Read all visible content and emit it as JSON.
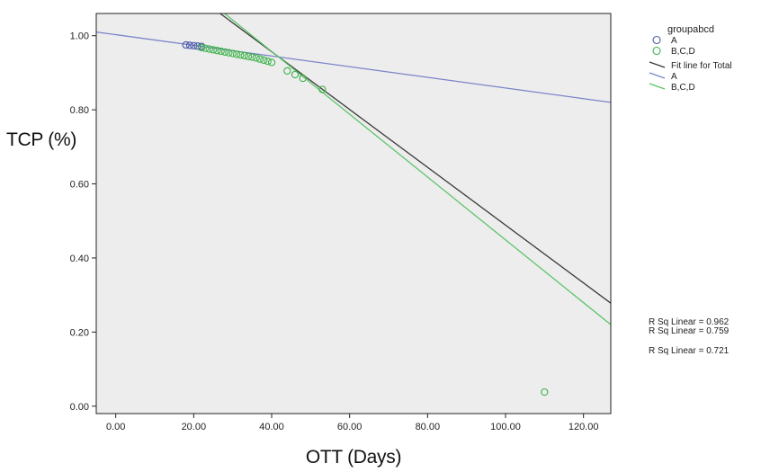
{
  "chart_data": {
    "type": "scatter",
    "xlabel": "OTT (Days)",
    "ylabel": "TCP (%)",
    "xlim": [
      -5,
      127
    ],
    "ylim": [
      -0.02,
      1.06
    ],
    "x_ticks": [
      0,
      20,
      40,
      60,
      80,
      100,
      120
    ],
    "x_tick_labels": [
      "0.00",
      "20.00",
      "40.00",
      "60.00",
      "80.00",
      "100.00",
      "120.00"
    ],
    "y_ticks": [
      0,
      0.2,
      0.4,
      0.6,
      0.8,
      1.0
    ],
    "y_tick_labels": [
      "0.00",
      "0.20",
      "0.40",
      "0.60",
      "0.80",
      "1.00"
    ],
    "grid": false,
    "background": "#ededed",
    "series": [
      {
        "name": "A",
        "marker": "circle",
        "color": "#4a58a8",
        "x": [
          18,
          19,
          20,
          21,
          22
        ],
        "y": [
          0.975,
          0.974,
          0.973,
          0.972,
          0.971
        ]
      },
      {
        "name": "B,C,D",
        "marker": "circle",
        "color": "#3db34a",
        "x": [
          22,
          23,
          24,
          25,
          26,
          27,
          28,
          29,
          30,
          31,
          32,
          33,
          34,
          35,
          36,
          37,
          38,
          39,
          40,
          44,
          46,
          48,
          53,
          110
        ],
        "y": [
          0.968,
          0.966,
          0.964,
          0.962,
          0.96,
          0.958,
          0.956,
          0.954,
          0.952,
          0.95,
          0.948,
          0.946,
          0.944,
          0.942,
          0.94,
          0.937,
          0.934,
          0.931,
          0.928,
          0.905,
          0.895,
          0.885,
          0.855,
          0.038
        ]
      }
    ],
    "fit_lines": [
      {
        "name": "Fit line for Total",
        "color": "#3a3a3a",
        "x": [
          -5,
          127
        ],
        "y": [
          1.308,
          0.278
        ]
      },
      {
        "name": "A",
        "color": "#7a84c8",
        "x": [
          -5,
          127
        ],
        "y": [
          1.01,
          0.82
        ]
      },
      {
        "name": "B,C,D",
        "color": "#5cc46a",
        "x": [
          -5,
          127
        ],
        "y": [
          1.339,
          0.22
        ]
      }
    ],
    "legend": {
      "position": "right",
      "title": "groupabcd",
      "entries": [
        {
          "label": "A",
          "kind": "marker",
          "color": "#4a58a8"
        },
        {
          "label": "B,C,D",
          "kind": "marker",
          "color": "#3db34a"
        },
        {
          "label": "Fit line for Total",
          "kind": "line",
          "color": "#3a3a3a"
        },
        {
          "label": "A",
          "kind": "line",
          "color": "#7a84c8"
        },
        {
          "label": "B,C,D",
          "kind": "line",
          "color": "#5cc46a"
        }
      ]
    },
    "annotations": [
      "R Sq Linear = 0.962",
      "R Sq Linear = 0.759",
      "R Sq Linear = 0.721"
    ]
  }
}
